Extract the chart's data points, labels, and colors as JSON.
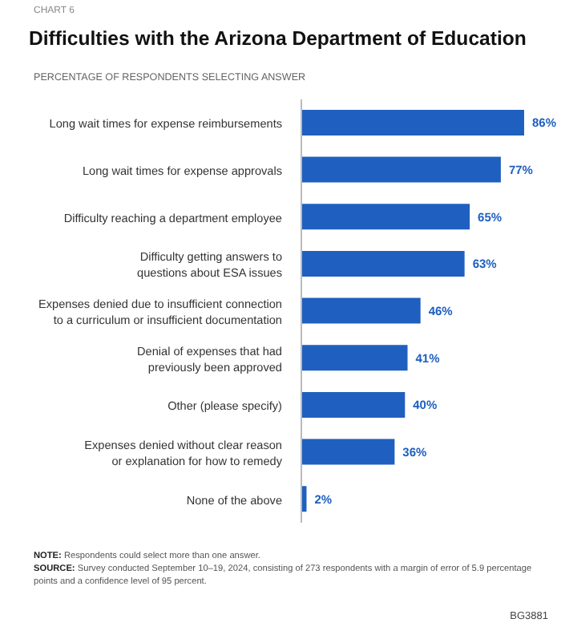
{
  "chart_data": {
    "type": "bar",
    "orientation": "horizontal",
    "title": "Difficulties with the Arizona Department of Education",
    "subtitle": "PERCENTAGE OF RESPONDENTS SELECTING ANSWER",
    "categories": [
      "Long wait times for expense reimbursements",
      "Long wait times for expense approvals",
      "Difficulty reaching a department employee",
      "Difficulty getting answers to questions about ESA issues",
      "Expenses denied due to insufficient connection to a curriculum or insufficient documentation",
      "Denial of expenses that had previously been approved",
      "Other (please specify)",
      "Expenses denied without clear reason or explanation for how to remedy",
      "None of the above"
    ],
    "values": [
      86,
      77,
      65,
      63,
      46,
      41,
      40,
      36,
      2
    ],
    "value_labels": [
      "86%",
      "77%",
      "65%",
      "63%",
      "46%",
      "41%",
      "40%",
      "36%",
      "2%"
    ],
    "color": "#1f5fbf",
    "annotations": [
      "CHART 6",
      "NOTE: Respondents could select more than one answer.",
      "SOURCE: Survey conducted September 10–19, 2024, consisting of 273 respondents with a margin of error of 5.9 percentage points and a confidence level of 95 percent.",
      "BG3881"
    ]
  }
}
